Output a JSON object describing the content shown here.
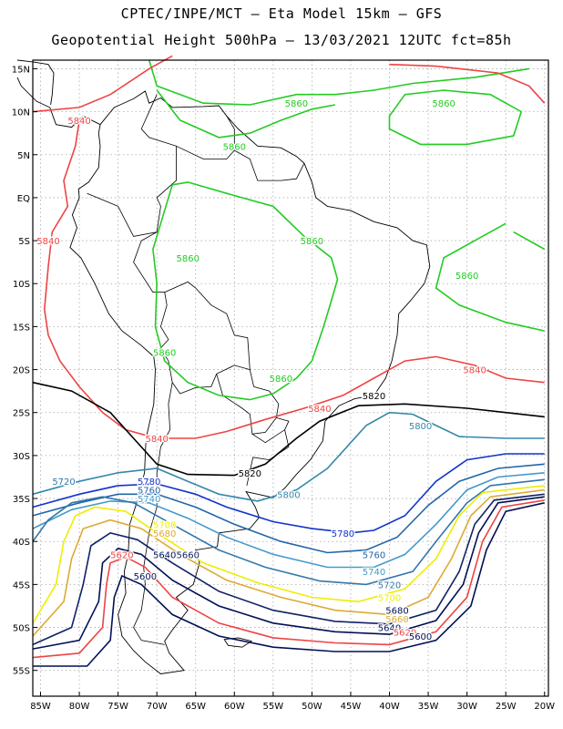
{
  "header": {
    "line1": "CPTEC/INPE/MCT –  Eta Model 15km – GFS",
    "line2": "Geopotential Height 500hPa – 13/03/2021 12UTC fct=85h"
  },
  "axes": {
    "lat_labels": [
      "15N",
      "10N",
      "5N",
      "EQ",
      "5S",
      "10S",
      "15S",
      "20S",
      "25S",
      "30S",
      "35S",
      "40S",
      "45S",
      "50S",
      "55S"
    ],
    "lon_labels": [
      "85W",
      "80W",
      "75W",
      "70W",
      "65W",
      "60W",
      "55W",
      "50W",
      "45W",
      "40W",
      "35W",
      "30W",
      "25W",
      "20W"
    ]
  },
  "colors": {
    "c5860": "#22cc22",
    "c5840": "#ee4444",
    "c5820": "#000000",
    "c5800": "#3388aa",
    "c5780": "#1133cc",
    "c5760": "#2266aa",
    "c5740": "#4499cc",
    "c5720": "#3377aa",
    "c5700": "#eeee00",
    "c5680": "#ddaa33",
    "c5660": "#112266",
    "c5640": "#001155",
    "c5620": "#ee4444"
  },
  "labels": [
    {
      "text": "5860",
      "color": "c5860",
      "lon": -52,
      "lat": 11
    },
    {
      "text": "5860",
      "color": "c5860",
      "lon": -33,
      "lat": 11
    },
    {
      "text": "5860",
      "color": "c5860",
      "lon": -60,
      "lat": 6
    },
    {
      "text": "5840",
      "color": "c5840",
      "lon": -80,
      "lat": 9
    },
    {
      "text": "5860",
      "color": "c5860",
      "lon": -50,
      "lat": -5
    },
    {
      "text": "5860",
      "color": "c5860",
      "lon": -66,
      "lat": -7
    },
    {
      "text": "5840",
      "color": "c5840",
      "lon": -84,
      "lat": -5
    },
    {
      "text": "5860",
      "color": "c5860",
      "lon": -30,
      "lat": -9
    },
    {
      "text": "5860",
      "color": "c5860",
      "lon": -69,
      "lat": -18
    },
    {
      "text": "5860",
      "color": "c5860",
      "lon": -54,
      "lat": -21
    },
    {
      "text": "5840",
      "color": "c5840",
      "lon": -29,
      "lat": -20
    },
    {
      "text": "5820",
      "color": "c5820",
      "lon": -42,
      "lat": -23
    },
    {
      "text": "5840",
      "color": "c5840",
      "lon": -49,
      "lat": -24.5
    },
    {
      "text": "5800",
      "color": "c5800",
      "lon": -36,
      "lat": -26.5
    },
    {
      "text": "5840",
      "color": "c5840",
      "lon": -70,
      "lat": -28
    },
    {
      "text": "5820",
      "color": "c5820",
      "lon": -58,
      "lat": -32
    },
    {
      "text": "5720",
      "color": "c5720",
      "lon": -82,
      "lat": -33
    },
    {
      "text": "5780",
      "color": "c5780",
      "lon": -71,
      "lat": -33
    },
    {
      "text": "5760",
      "color": "c5760",
      "lon": -71,
      "lat": -34
    },
    {
      "text": "5740",
      "color": "c5740",
      "lon": -71,
      "lat": -35
    },
    {
      "text": "5800",
      "color": "c5800",
      "lon": -53,
      "lat": -34.5
    },
    {
      "text": "5700",
      "color": "c5700",
      "lon": -69,
      "lat": -38
    },
    {
      "text": "5780",
      "color": "c5780",
      "lon": -46,
      "lat": -39
    },
    {
      "text": "5680",
      "color": "c5680",
      "lon": -69,
      "lat": -39
    },
    {
      "text": "5760",
      "color": "c5760",
      "lon": -42,
      "lat": -41.5
    },
    {
      "text": "5660",
      "color": "c5660",
      "lon": -66,
      "lat": -41.5
    },
    {
      "text": "5640",
      "color": "c5640",
      "lon": -69,
      "lat": -41.5
    },
    {
      "text": "5620",
      "color": "c5620",
      "lon": -74.5,
      "lat": -41.5
    },
    {
      "text": "5740",
      "color": "c5740",
      "lon": -42,
      "lat": -43.5
    },
    {
      "text": "5600",
      "color": "c5640",
      "lon": -71.5,
      "lat": -44
    },
    {
      "text": "5720",
      "color": "c5720",
      "lon": -40,
      "lat": -45
    },
    {
      "text": "5700",
      "color": "c5700",
      "lon": -40,
      "lat": -46.5
    },
    {
      "text": "5680",
      "color": "c5640",
      "lon": -39,
      "lat": -48
    },
    {
      "text": "5660",
      "color": "c5680",
      "lon": -39,
      "lat": -49
    },
    {
      "text": "5640",
      "color": "c5640",
      "lon": -40,
      "lat": -50
    },
    {
      "text": "5620",
      "color": "c5620",
      "lon": -38,
      "lat": -50.5
    },
    {
      "text": "5600",
      "color": "c5640",
      "lon": -36,
      "lat": -51
    }
  ]
}
